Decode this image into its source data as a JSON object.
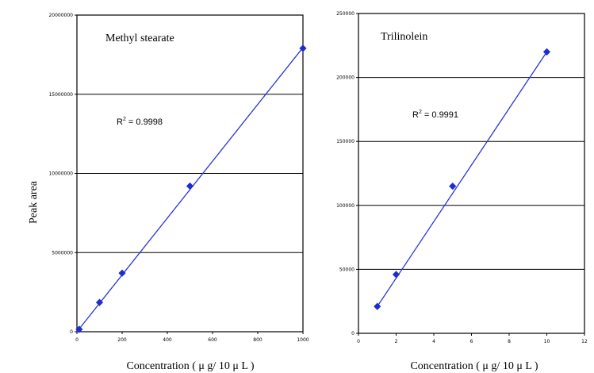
{
  "y_axis_label": "Peak area",
  "colors": {
    "marker": "#1f2dd0",
    "line": "#2b35d6",
    "grid": "#000000"
  },
  "chart_data": [
    {
      "type": "scatter",
      "title": "Methyl stearate",
      "annotation": {
        "text": "R",
        "sup": "2",
        "rest": " = 0.9998"
      },
      "xlabel": "Concentration ( μ g/ 10 μ L )",
      "ylabel": "Peak area",
      "xlim": [
        0,
        1000
      ],
      "ylim": [
        0,
        20000000
      ],
      "x_ticks": [
        "0",
        "200",
        "400",
        "600",
        "800",
        "1000"
      ],
      "y_ticks": [
        "0",
        "5000000",
        "10000000",
        "15000000",
        "20000000"
      ],
      "grid": "horizontal",
      "points": [
        {
          "x": 10,
          "y": 150000
        },
        {
          "x": 100,
          "y": 1850000
        },
        {
          "x": 200,
          "y": 3700000
        },
        {
          "x": 500,
          "y": 9200000
        },
        {
          "x": 1000,
          "y": 17900000
        }
      ],
      "trendline": [
        [
          0,
          0
        ],
        [
          1000,
          17950000
        ]
      ]
    },
    {
      "type": "scatter",
      "title": "Trilinolein",
      "annotation": {
        "text": "R",
        "sup": "2",
        "rest": " = 0.9991"
      },
      "xlabel": "Concentration ( μ g/ 10 μ L )",
      "ylabel": "",
      "xlim": [
        0,
        12
      ],
      "ylim": [
        0,
        250000
      ],
      "x_ticks": [
        "0",
        "2",
        "4",
        "6",
        "8",
        "10",
        "12"
      ],
      "y_ticks": [
        "0",
        "50000",
        "100000",
        "150000",
        "200000",
        "250000"
      ],
      "grid": "horizontal",
      "points": [
        {
          "x": 1,
          "y": 21000
        },
        {
          "x": 2,
          "y": 46000
        },
        {
          "x": 5,
          "y": 115000
        },
        {
          "x": 10,
          "y": 220000
        }
      ],
      "trendline": [
        [
          1,
          21000
        ],
        [
          10,
          220000
        ]
      ]
    }
  ]
}
